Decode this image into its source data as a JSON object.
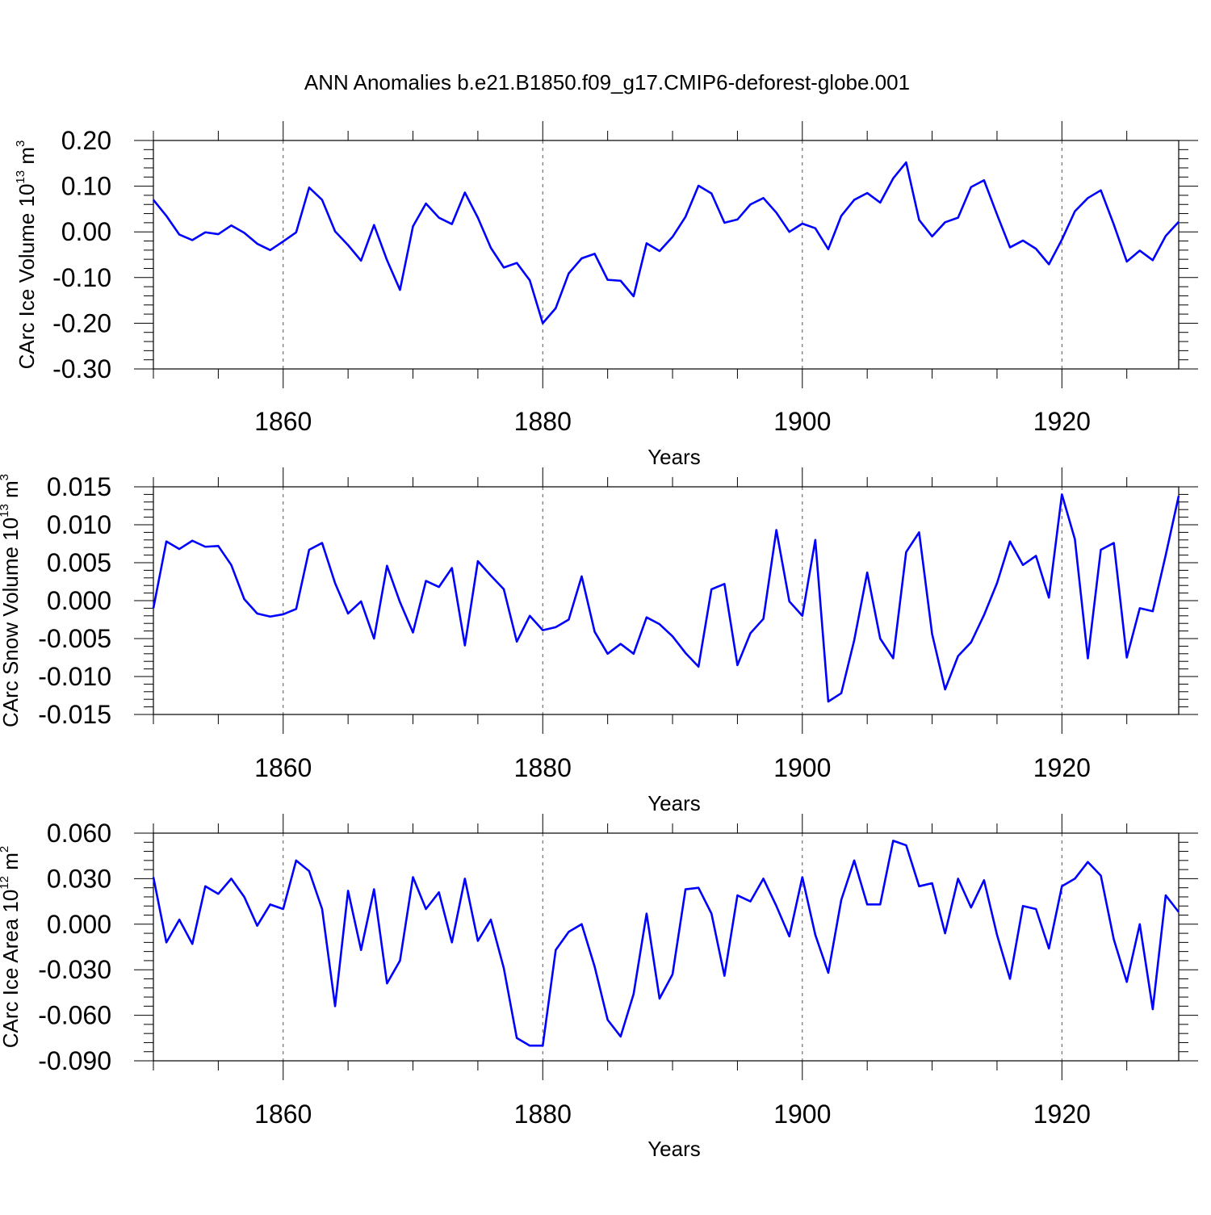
{
  "title": "ANN Anomalies b.e21.B1850.f09_g17.CMIP6-deforest-globe.001",
  "colors": {
    "line": "#0000ff",
    "axes": "#000000",
    "grid": "#555555",
    "background": "#ffffff"
  },
  "chart_data": [
    {
      "type": "line",
      "title": "",
      "xlabel": "Years",
      "ylabel": {
        "text": "CArc Ice Volume 10",
        "sup1": "13",
        "mid": " m",
        "sup2": "3"
      },
      "xlim": [
        1850,
        1929
      ],
      "ylim": [
        -0.3,
        0.2
      ],
      "xticks": [
        1860,
        1880,
        1900,
        1920
      ],
      "xtick_labels": [
        "1860",
        "1880",
        "1900",
        "1920"
      ],
      "yticks": [
        0.2,
        0.1,
        0.0,
        -0.1,
        -0.2,
        -0.3
      ],
      "ytick_labels": [
        "0.20",
        "0.10",
        "0.00",
        "-0.10",
        "-0.20",
        "-0.30"
      ],
      "grid": "vertical dashed at major x ticks",
      "series": [
        {
          "x_start": 1850,
          "values": [
            0.07,
            0.035,
            -0.006,
            -0.018,
            -0.001,
            -0.005,
            0.014,
            -0.002,
            -0.026,
            -0.04,
            -0.021,
            -0.001,
            0.097,
            0.07,
            0.001,
            -0.029,
            -0.063,
            0.015,
            -0.062,
            -0.127,
            0.012,
            0.062,
            0.031,
            0.017,
            0.086,
            0.031,
            -0.035,
            -0.078,
            -0.068,
            -0.106,
            -0.2,
            -0.167,
            -0.091,
            -0.058,
            -0.048,
            -0.105,
            -0.107,
            -0.141,
            -0.025,
            -0.042,
            -0.011,
            0.033,
            0.101,
            0.084,
            0.02,
            0.027,
            0.06,
            0.074,
            0.042,
            0.0,
            0.018,
            0.008,
            -0.038,
            0.035,
            0.07,
            0.085,
            0.064,
            0.117,
            0.152,
            0.026,
            -0.01,
            0.021,
            0.031,
            0.098,
            0.113,
            0.038,
            -0.034,
            -0.019,
            -0.037,
            -0.071,
            -0.017,
            0.045,
            0.074,
            0.091,
            0.016,
            -0.065,
            -0.041,
            -0.062,
            -0.009,
            0.022
          ]
        }
      ]
    },
    {
      "type": "line",
      "title": "",
      "xlabel": "Years",
      "ylabel": {
        "text": "CArc Snow Volume 10",
        "sup1": "13",
        "mid": " m",
        "sup2": "3"
      },
      "xlim": [
        1850,
        1929
      ],
      "ylim": [
        -0.015,
        0.015
      ],
      "xticks": [
        1860,
        1880,
        1900,
        1920
      ],
      "xtick_labels": [
        "1860",
        "1880",
        "1900",
        "1920"
      ],
      "yticks": [
        0.015,
        0.01,
        0.005,
        0.0,
        -0.005,
        -0.01,
        -0.015
      ],
      "ytick_labels": [
        "0.015",
        "0.010",
        "0.005",
        "0.000",
        "-0.005",
        "-0.010",
        "-0.015"
      ],
      "grid": "vertical dashed at major x ticks",
      "series": [
        {
          "x_start": 1850,
          "values": [
            -0.001,
            0.0078,
            0.0068,
            0.0079,
            0.0071,
            0.0072,
            0.0047,
            0.0002,
            -0.0017,
            -0.0021,
            -0.0018,
            -0.0011,
            0.0067,
            0.0076,
            0.0023,
            -0.0017,
            -0.0001,
            -0.005,
            0.0046,
            -0.0002,
            -0.0042,
            0.0026,
            0.0018,
            0.0043,
            -0.0059,
            0.0052,
            0.0033,
            0.0015,
            -0.0054,
            -0.002,
            -0.0039,
            -0.0035,
            -0.0025,
            0.0032,
            -0.0041,
            -0.007,
            -0.0057,
            -0.007,
            -0.0022,
            -0.0031,
            -0.0047,
            -0.0069,
            -0.0087,
            0.0015,
            0.0022,
            -0.0085,
            -0.0043,
            -0.0024,
            0.0093,
            -0.0001,
            -0.002,
            0.008,
            -0.0133,
            -0.0122,
            -0.0052,
            0.0037,
            -0.005,
            -0.0076,
            0.0064,
            0.009,
            -0.0044,
            -0.0117,
            -0.0073,
            -0.0055,
            -0.0019,
            0.0023,
            0.0078,
            0.0047,
            0.0059,
            0.0004,
            0.014,
            0.0081,
            -0.0076,
            0.0067,
            0.0076,
            -0.0075,
            -0.001,
            -0.0014,
            0.006,
            0.0138
          ]
        }
      ]
    },
    {
      "type": "line",
      "title": "",
      "xlabel": "Years",
      "ylabel": {
        "text": "CArc Ice Area 10",
        "sup1": "12",
        "mid": " m",
        "sup2": "2"
      },
      "xlim": [
        1850,
        1929
      ],
      "ylim": [
        -0.09,
        0.06
      ],
      "xticks": [
        1860,
        1880,
        1900,
        1920
      ],
      "xtick_labels": [
        "1860",
        "1880",
        "1900",
        "1920"
      ],
      "yticks": [
        0.06,
        0.03,
        0.0,
        -0.03,
        -0.06,
        -0.09
      ],
      "ytick_labels": [
        "0.060",
        "0.030",
        "0.000",
        "-0.030",
        "-0.060",
        "-0.090"
      ],
      "grid": "vertical dashed at major x ticks",
      "series": [
        {
          "x_start": 1850,
          "values": [
            0.031,
            -0.012,
            0.003,
            -0.013,
            0.025,
            0.02,
            0.03,
            0.018,
            -0.001,
            0.013,
            0.01,
            0.042,
            0.035,
            0.01,
            -0.054,
            0.022,
            -0.017,
            0.023,
            -0.039,
            -0.024,
            0.031,
            0.01,
            0.021,
            -0.012,
            0.03,
            -0.011,
            0.003,
            -0.029,
            -0.075,
            -0.08,
            -0.08,
            -0.017,
            -0.005,
            0.0,
            -0.028,
            -0.063,
            -0.074,
            -0.046,
            0.007,
            -0.049,
            -0.033,
            0.023,
            0.024,
            0.007,
            -0.034,
            0.019,
            0.015,
            0.03,
            0.012,
            -0.008,
            0.031,
            -0.007,
            -0.032,
            0.016,
            0.042,
            0.013,
            0.013,
            0.055,
            0.052,
            0.025,
            0.027,
            -0.006,
            0.03,
            0.011,
            0.029,
            -0.007,
            -0.036,
            0.012,
            0.01,
            -0.016,
            0.025,
            0.03,
            0.041,
            0.032,
            -0.01,
            -0.038,
            0.0,
            -0.056,
            0.019,
            0.008
          ]
        }
      ]
    }
  ]
}
